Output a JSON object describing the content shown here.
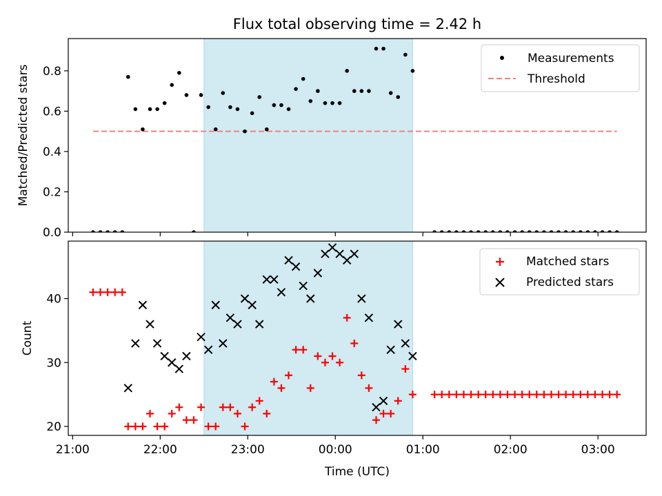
{
  "title": "Flux total observing time = 2.42 h",
  "xlabel": "Time (UTC)",
  "colors": {
    "measurement": "#000000",
    "threshold": "#f08080",
    "matched": "#ff0000",
    "predicted": "#000000",
    "band": "#add8e6"
  },
  "chart_data": [
    {
      "type": "scatter",
      "ylabel": "Matched/Predicted stars",
      "ylim": [
        0,
        0.96
      ],
      "yticks": [
        0.0,
        0.2,
        0.4,
        0.6,
        0.8
      ],
      "ytick_labels": [
        "0.0",
        "0.2",
        "0.4",
        "0.6",
        "0.8"
      ],
      "x_unit": "hours since 21:00 UTC",
      "xlim": [
        -0.05,
        6.55
      ],
      "legend": {
        "position": "top-right",
        "entries": [
          "Measurements",
          "Threshold"
        ]
      },
      "observing_band": {
        "start": "22:30",
        "end": "00:53"
      },
      "threshold": {
        "name": "Threshold",
        "value": 0.5,
        "x_start": "21:14",
        "x_end": "03:13"
      },
      "series": [
        {
          "name": "Measurements",
          "x": [
            "21:14",
            "21:19",
            "21:24",
            "21:29",
            "21:34",
            "21:38",
            "21:43",
            "21:48",
            "21:53",
            "21:58",
            "22:03",
            "22:08",
            "22:13",
            "22:18",
            "22:23",
            "22:28",
            "22:33",
            "22:38",
            "22:43",
            "22:48",
            "22:53",
            "22:58",
            "23:03",
            "23:08",
            "23:13",
            "23:18",
            "23:23",
            "23:28",
            "23:33",
            "23:38",
            "23:43",
            "23:48",
            "23:53",
            "23:58",
            "00:03",
            "00:08",
            "00:13",
            "00:18",
            "00:23",
            "00:28",
            "00:33",
            "00:38",
            "00:43",
            "00:48",
            "00:53",
            "01:08",
            "01:13",
            "01:18",
            "01:23",
            "01:28",
            "01:33",
            "01:38",
            "01:43",
            "01:48",
            "01:53",
            "01:58",
            "02:03",
            "02:08",
            "02:13",
            "02:18",
            "02:23",
            "02:28",
            "02:33",
            "02:38",
            "02:43",
            "02:48",
            "02:53",
            "02:58",
            "03:03",
            "03:08",
            "03:13"
          ],
          "y": [
            0.0,
            0.0,
            0.0,
            0.0,
            0.0,
            0.77,
            0.61,
            0.51,
            0.61,
            0.61,
            0.64,
            0.73,
            0.79,
            0.68,
            0.0,
            0.68,
            0.62,
            0.51,
            0.69,
            0.62,
            0.61,
            0.5,
            0.59,
            0.67,
            0.51,
            0.63,
            0.63,
            0.61,
            0.71,
            0.76,
            0.65,
            0.7,
            0.64,
            0.64,
            0.64,
            0.8,
            0.7,
            0.7,
            0.7,
            0.91,
            0.91,
            0.69,
            0.67,
            0.88,
            0.8,
            0.0,
            0.0,
            0.0,
            0.0,
            0.0,
            0.0,
            0.0,
            0.0,
            0.0,
            0.0,
            0.0,
            0.0,
            0.0,
            0.0,
            0.0,
            0.0,
            0.0,
            0.0,
            0.0,
            0.0,
            0.0,
            0.0,
            0.0,
            0.0,
            0.0,
            0.0
          ]
        }
      ]
    },
    {
      "type": "scatter",
      "ylabel": "Count",
      "ylim": [
        18.6,
        49.0
      ],
      "yticks": [
        20,
        30,
        40
      ],
      "ytick_labels": [
        "20",
        "30",
        "40"
      ],
      "x_unit": "hours since 21:00 UTC",
      "xlim": [
        -0.05,
        6.55
      ],
      "xticks": [
        0,
        1,
        2,
        3,
        4,
        5,
        6
      ],
      "xtick_labels": [
        "21:00",
        "22:00",
        "23:00",
        "00:00",
        "01:00",
        "02:00",
        "03:00"
      ],
      "legend": {
        "position": "top-right",
        "entries": [
          "Matched stars",
          "Predicted stars"
        ]
      },
      "observing_band": {
        "start": "22:30",
        "end": "00:53"
      },
      "series": [
        {
          "name": "Matched stars",
          "marker": "plus",
          "x": [
            "21:14",
            "21:19",
            "21:24",
            "21:29",
            "21:34",
            "21:38",
            "21:43",
            "21:48",
            "21:53",
            "21:58",
            "22:03",
            "22:08",
            "22:13",
            "22:18",
            "22:23",
            "22:28",
            "22:33",
            "22:38",
            "22:43",
            "22:48",
            "22:53",
            "22:58",
            "23:03",
            "23:08",
            "23:13",
            "23:18",
            "23:23",
            "23:28",
            "23:33",
            "23:38",
            "23:43",
            "23:48",
            "23:53",
            "23:58",
            "00:03",
            "00:08",
            "00:13",
            "00:18",
            "00:23",
            "00:28",
            "00:33",
            "00:38",
            "00:43",
            "00:48",
            "00:53",
            "01:08",
            "01:13",
            "01:18",
            "01:23",
            "01:28",
            "01:33",
            "01:38",
            "01:43",
            "01:48",
            "01:53",
            "01:58",
            "02:03",
            "02:08",
            "02:13",
            "02:18",
            "02:23",
            "02:28",
            "02:33",
            "02:38",
            "02:43",
            "02:48",
            "02:53",
            "02:58",
            "03:03",
            "03:08",
            "03:13"
          ],
          "y": [
            41,
            41,
            41,
            41,
            41,
            20,
            20,
            20,
            22,
            20,
            20,
            22,
            23,
            21,
            21,
            23,
            20,
            20,
            23,
            23,
            22,
            20,
            23,
            24,
            22,
            27,
            26,
            28,
            32,
            32,
            26,
            31,
            30,
            31,
            30,
            37,
            33,
            28,
            26,
            21,
            22,
            22,
            24,
            29,
            25,
            25,
            25,
            25,
            25,
            25,
            25,
            25,
            25,
            25,
            25,
            25,
            25,
            25,
            25,
            25,
            25,
            25,
            25,
            25,
            25,
            25,
            25,
            25,
            25,
            25,
            25
          ]
        },
        {
          "name": "Predicted stars",
          "marker": "x",
          "x": [
            "21:38",
            "21:43",
            "21:48",
            "21:53",
            "21:58",
            "22:03",
            "22:08",
            "22:13",
            "22:18",
            "22:28",
            "22:33",
            "22:38",
            "22:43",
            "22:48",
            "22:53",
            "22:58",
            "23:03",
            "23:08",
            "23:13",
            "23:18",
            "23:23",
            "23:28",
            "23:33",
            "23:38",
            "23:43",
            "23:48",
            "23:53",
            "23:58",
            "00:03",
            "00:08",
            "00:13",
            "00:18",
            "00:23",
            "00:28",
            "00:33",
            "00:38",
            "00:43",
            "00:48",
            "00:53"
          ],
          "y": [
            26,
            33,
            39,
            36,
            33,
            31,
            30,
            29,
            31,
            34,
            32,
            39,
            33,
            37,
            36,
            40,
            39,
            36,
            43,
            43,
            41,
            46,
            45,
            42,
            40,
            44,
            47,
            48,
            47,
            46,
            47,
            40,
            37,
            23,
            24,
            32,
            36,
            33,
            31
          ]
        }
      ]
    }
  ]
}
